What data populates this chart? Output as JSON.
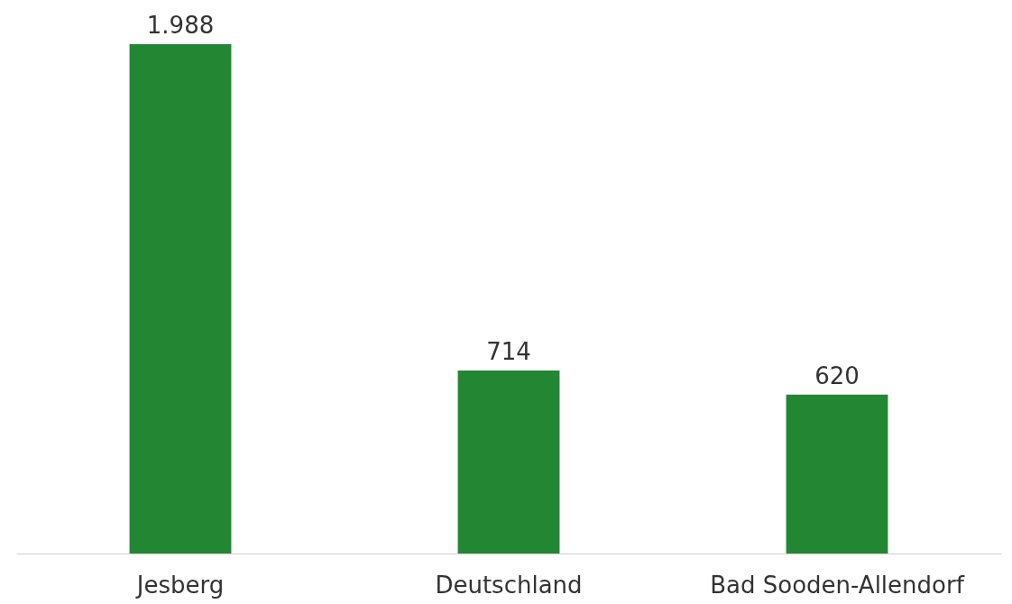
{
  "chart_data": {
    "type": "bar",
    "categories": [
      "Jesberg",
      "Deutschland",
      "Bad Sooden-Allendorf"
    ],
    "values": [
      1988,
      714,
      620
    ],
    "value_labels": [
      "1.988",
      "714",
      "620"
    ],
    "color": "#238632",
    "grid": false
  }
}
